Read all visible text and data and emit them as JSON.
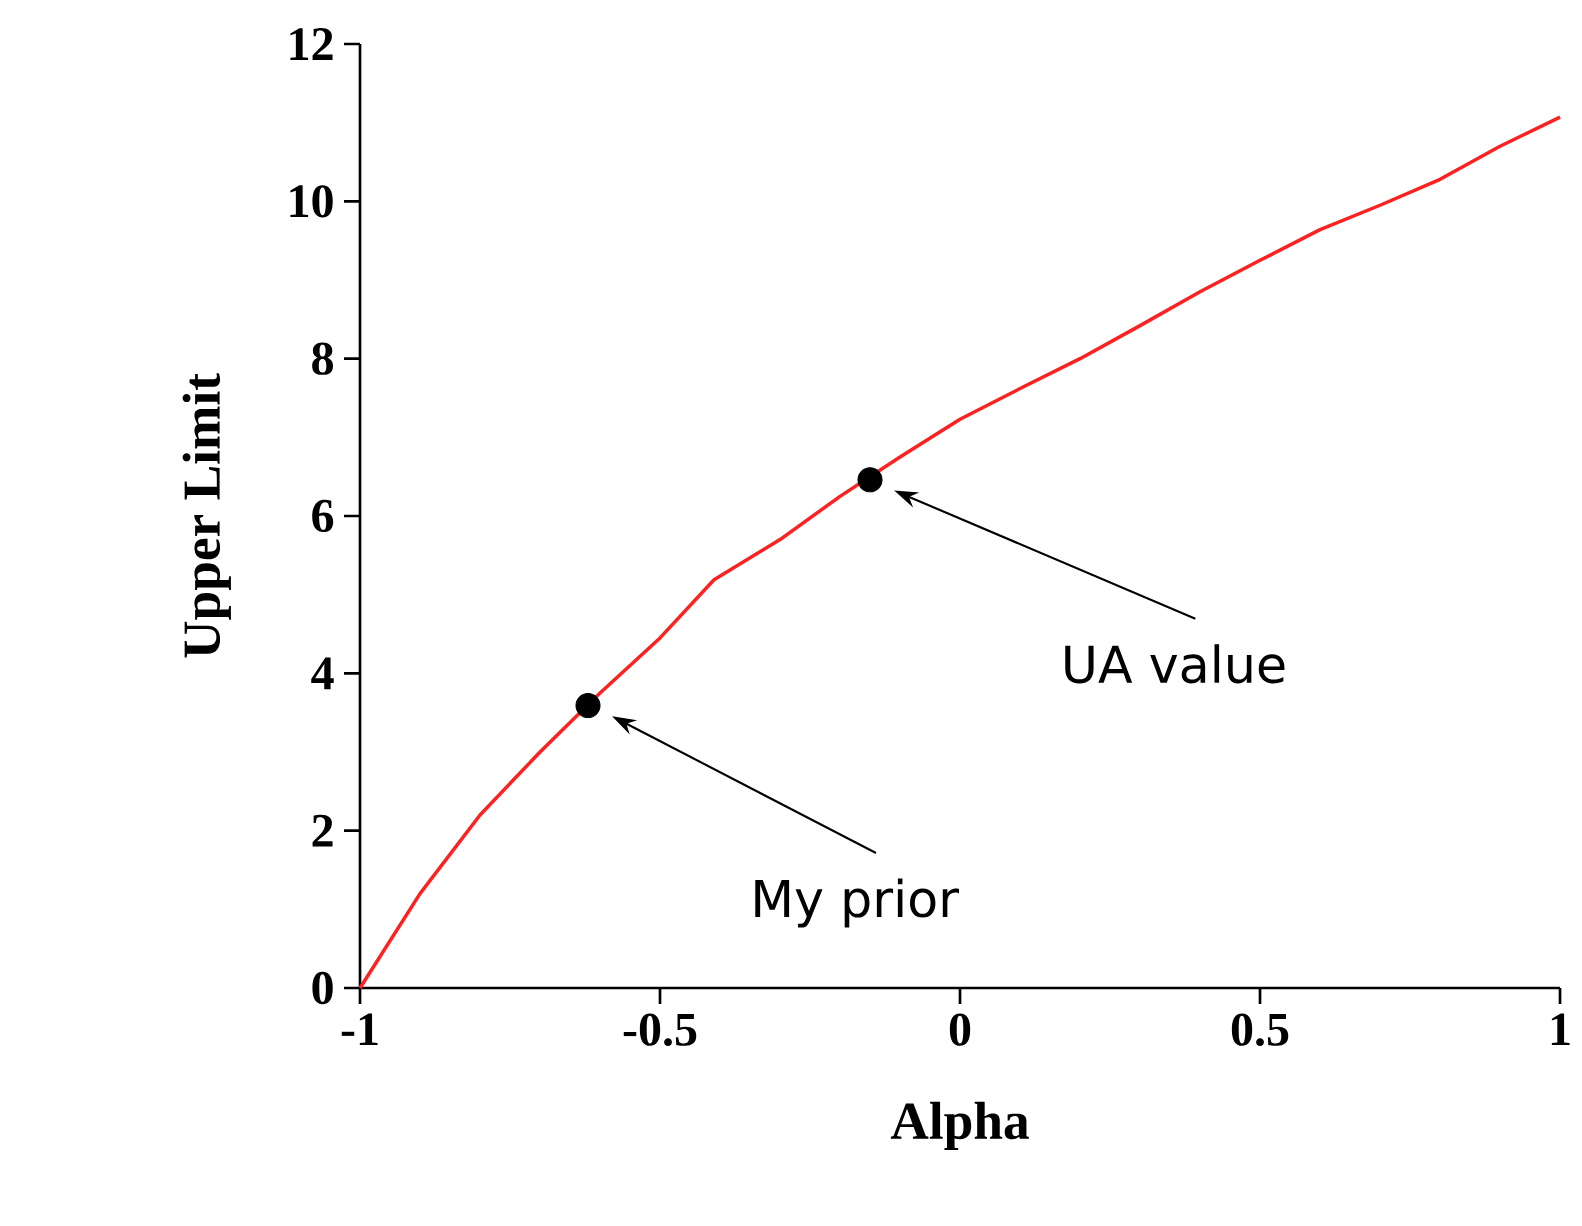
{
  "chart_data": {
    "type": "line",
    "xlabel": "Alpha",
    "ylabel": "Upper Limit",
    "xlim": [
      -1,
      1
    ],
    "ylim": [
      0,
      12
    ],
    "xticks": [
      -1,
      -0.5,
      0,
      0.5,
      1
    ],
    "yticks": [
      0,
      2,
      4,
      6,
      8,
      10,
      12
    ],
    "grid": false,
    "series": [
      {
        "color": "#ff2020",
        "marker": "none",
        "x": [
          -1,
          -0.9,
          -0.8,
          -0.7,
          -0.6,
          -0.5,
          -0.41,
          -0.3,
          -0.2,
          -0.1,
          0,
          0.1,
          0.2,
          0.3,
          0.4,
          0.5,
          0.6,
          0.7,
          0.8,
          0.9,
          1
        ],
        "values": [
          0,
          1.2,
          2.2,
          3.0,
          3.75,
          4.45,
          5.19,
          5.7,
          6.25,
          6.75,
          7.23,
          7.62,
          8.0,
          8.42,
          8.85,
          9.25,
          9.64,
          9.95,
          10.28,
          10.7,
          11.07
        ]
      },
      {
        "type": "scatter",
        "color": "#000000",
        "marker": "circle",
        "x": [
          -0.62,
          -0.15
        ],
        "values": [
          3.59,
          6.46
        ]
      }
    ],
    "annotations": [
      "My prior",
      "UA value"
    ]
  }
}
